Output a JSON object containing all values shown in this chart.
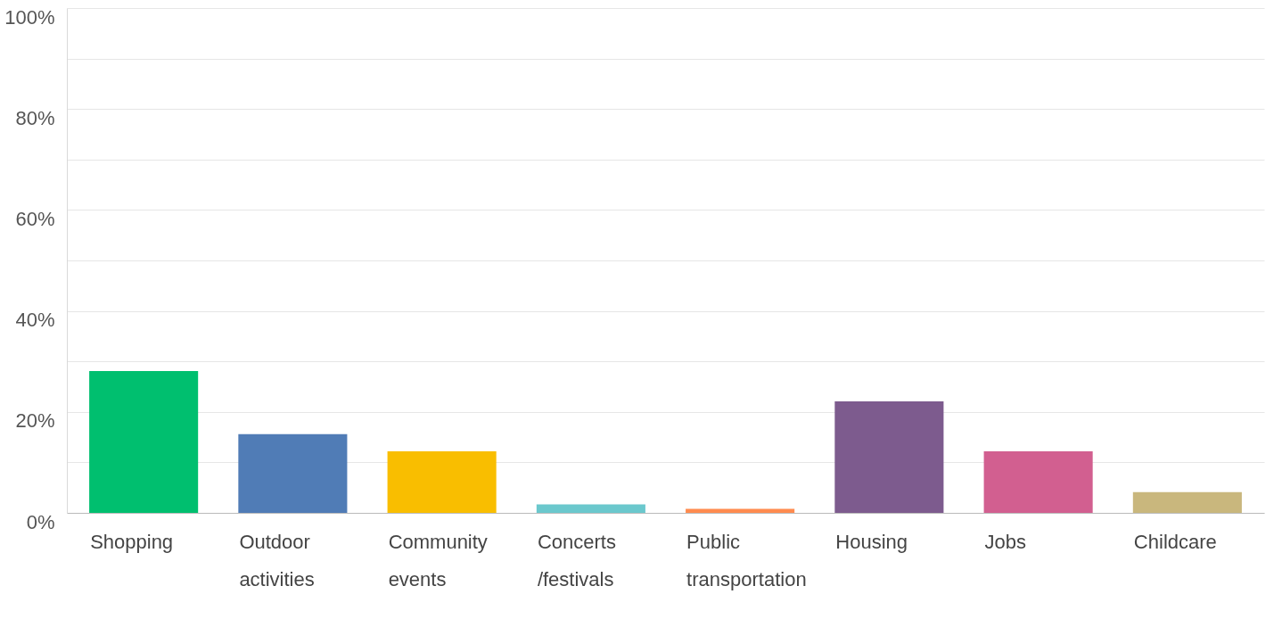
{
  "chart_data": {
    "type": "bar",
    "categories": [
      "Shopping",
      "Outdoor activities",
      "Community events",
      "Concerts /festivals",
      "Public transportation",
      "Housing",
      "Jobs",
      "Childcare"
    ],
    "values": [
      28.1,
      15.6,
      12.2,
      1.7,
      0.8,
      22.1,
      12.2,
      4.1
    ],
    "colors": [
      "#00bf6f",
      "#507cb6",
      "#f9be00",
      "#6bc8cd",
      "#ff8b4f",
      "#7d5b8e",
      "#d25f90",
      "#c9b77d"
    ],
    "ylim": [
      0,
      100
    ],
    "yticks": [
      {
        "value": 0,
        "label": "0%"
      },
      {
        "value": 10,
        "label": null
      },
      {
        "value": 20,
        "label": "20%"
      },
      {
        "value": 30,
        "label": null
      },
      {
        "value": 40,
        "label": "40%"
      },
      {
        "value": 50,
        "label": null
      },
      {
        "value": 60,
        "label": "60%"
      },
      {
        "value": 70,
        "label": null
      },
      {
        "value": 80,
        "label": "80%"
      },
      {
        "value": 90,
        "label": null
      },
      {
        "value": 100,
        "label": "100%"
      }
    ],
    "grid": true
  }
}
